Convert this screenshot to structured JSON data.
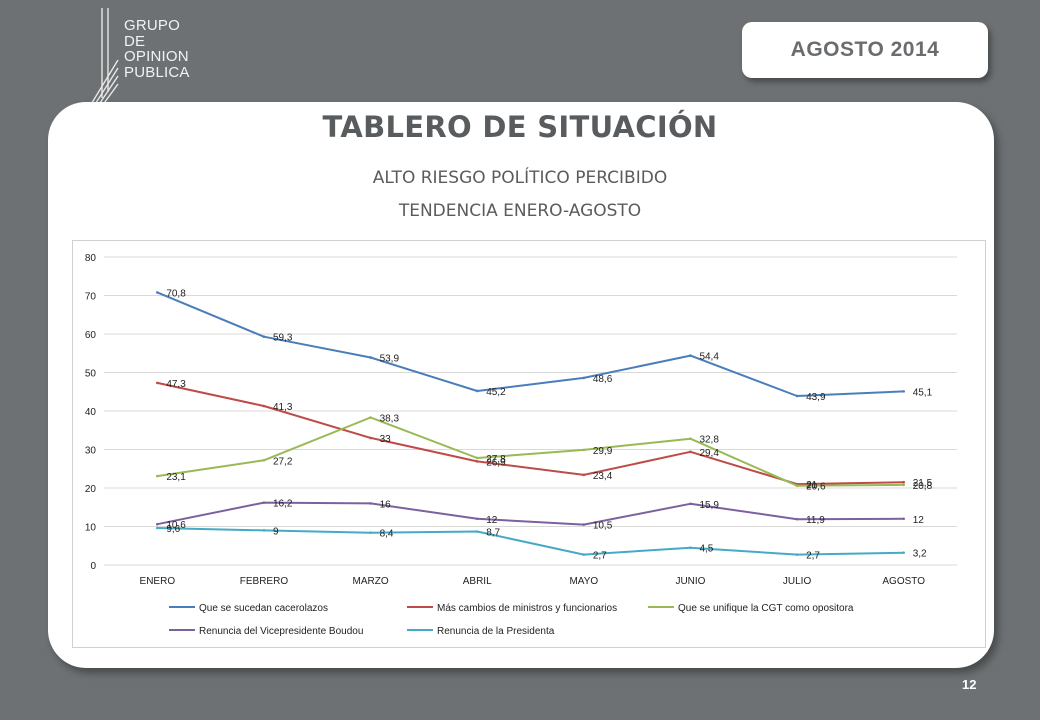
{
  "logo": {
    "lines": [
      "GRUPO",
      "DE",
      "OPINION",
      "PUBLICA"
    ]
  },
  "badge": {
    "text": "AGOSTO  2014"
  },
  "header": {
    "title": "TABLERO DE SITUACIÓN",
    "subtitle1": "ALTO  RIESGO POLÍTICO PERCIBIDO",
    "subtitle2": "TENDENCIA ENERO-AGOSTO"
  },
  "page_number": "12",
  "chart_data": {
    "type": "line",
    "categories": [
      "ENERO",
      "FEBRERO",
      "MARZO",
      "ABRIL",
      "MAYO",
      "JUNIO",
      "JULIO",
      "AGOSTO"
    ],
    "ylim": [
      0,
      80
    ],
    "yticks": [
      0,
      10,
      20,
      30,
      40,
      50,
      60,
      70,
      80
    ],
    "grid": true,
    "legend_position": "bottom",
    "series": [
      {
        "name": "Que se sucedan cacerolazos",
        "color": "#4a7ebb",
        "values": [
          70.8,
          59.3,
          53.9,
          45.2,
          48.6,
          54.4,
          43.9,
          45.1
        ],
        "labels": [
          "70,8",
          "59,3",
          "53,9",
          "45,2",
          "48,6",
          "54,4",
          "43,9",
          "45,1"
        ]
      },
      {
        "name": "Más cambios de ministros y funcionarios",
        "color": "#be4b48",
        "values": [
          47.3,
          41.3,
          33,
          26.9,
          23.4,
          29.4,
          21,
          21.5
        ],
        "labels": [
          "47,3",
          "41,3",
          "33",
          "26,9",
          "23,4",
          "29,4",
          "21",
          "21,5"
        ]
      },
      {
        "name": "Que se unifique la CGT como opositora",
        "color": "#98b954",
        "values": [
          23.1,
          27.2,
          38.3,
          27.8,
          29.9,
          32.8,
          20.6,
          20.8
        ],
        "labels": [
          "23,1",
          "27,2",
          "38,3",
          "27,8",
          "29,9",
          "32,8",
          "20,6",
          "20,8"
        ]
      },
      {
        "name": "Renuncia del Vicepresidente Boudou",
        "color": "#7d60a0",
        "values": [
          10.6,
          16.2,
          16,
          12,
          10.5,
          15.9,
          11.9,
          12
        ],
        "labels": [
          "10,6",
          "16,2",
          "16",
          "12",
          "10,5",
          "15,9",
          "11,9",
          "12"
        ]
      },
      {
        "name": "Renuncia de la Presidenta",
        "color": "#46aac5",
        "values": [
          9.6,
          9,
          8.4,
          8.7,
          2.7,
          4.5,
          2.7,
          3.2
        ],
        "labels": [
          "9,6",
          "9",
          "8,4",
          "8,7",
          "2,7",
          "4,5",
          "2,7",
          "3,2"
        ]
      }
    ]
  }
}
